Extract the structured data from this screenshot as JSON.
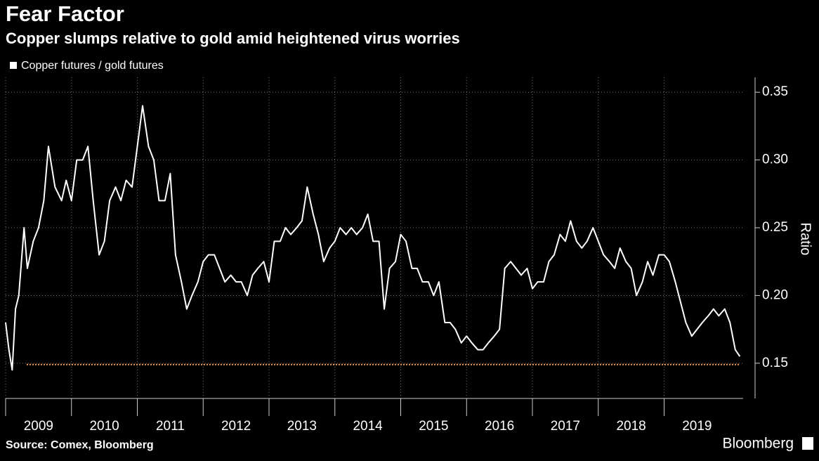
{
  "chart_data": {
    "type": "line",
    "title": "Fear Factor",
    "subtitle": "Copper slumps relative to gold amid heightened virus worries",
    "y_label": "Ratio",
    "source": "Source: Comex, Bloomberg",
    "brand": "Bloomberg",
    "xlim": [
      2009,
      2020.2
    ],
    "xticks": [
      2009,
      2010,
      2011,
      2012,
      2013,
      2014,
      2015,
      2016,
      2017,
      2018,
      2019
    ],
    "ylim": [
      0.124,
      0.361
    ],
    "yticks": [
      0.15,
      {
        "value": 0.2,
        "label": "0.20"
      },
      0.25,
      {
        "value": 0.3,
        "label": "0.30"
      },
      0.35
    ],
    "grid": true,
    "y_axis_side": "right",
    "reference_line": {
      "value": 0.149,
      "color": "#f0a060"
    },
    "x": [
      2009.0,
      2009.05,
      2009.1,
      2009.15,
      2009.2,
      2009.28,
      2009.33,
      2009.42,
      2009.5,
      2009.58,
      2009.65,
      2009.75,
      2009.85,
      2009.92,
      2010.0,
      2010.08,
      2010.17,
      2010.25,
      2010.33,
      2010.42,
      2010.5,
      2010.58,
      2010.67,
      2010.75,
      2010.83,
      2010.92,
      2011.0,
      2011.08,
      2011.17,
      2011.25,
      2011.33,
      2011.42,
      2011.5,
      2011.58,
      2011.67,
      2011.75,
      2011.83,
      2011.92,
      2012.0,
      2012.08,
      2012.17,
      2012.25,
      2012.33,
      2012.42,
      2012.5,
      2012.58,
      2012.67,
      2012.75,
      2012.83,
      2012.92,
      2013.0,
      2013.08,
      2013.17,
      2013.25,
      2013.33,
      2013.42,
      2013.5,
      2013.58,
      2013.67,
      2013.75,
      2013.83,
      2013.92,
      2014.0,
      2014.08,
      2014.17,
      2014.25,
      2014.33,
      2014.42,
      2014.5,
      2014.58,
      2014.67,
      2014.75,
      2014.83,
      2014.92,
      2015.0,
      2015.08,
      2015.17,
      2015.25,
      2015.33,
      2015.42,
      2015.5,
      2015.58,
      2015.67,
      2015.75,
      2015.83,
      2015.92,
      2016.0,
      2016.08,
      2016.17,
      2016.25,
      2016.33,
      2016.42,
      2016.5,
      2016.58,
      2016.67,
      2016.75,
      2016.83,
      2016.92,
      2017.0,
      2017.08,
      2017.17,
      2017.25,
      2017.33,
      2017.42,
      2017.5,
      2017.58,
      2017.67,
      2017.75,
      2017.83,
      2017.92,
      2018.0,
      2018.08,
      2018.17,
      2018.25,
      2018.33,
      2018.42,
      2018.5,
      2018.58,
      2018.67,
      2018.75,
      2018.83,
      2018.92,
      2019.0,
      2019.08,
      2019.17,
      2019.25,
      2019.33,
      2019.42,
      2019.5,
      2019.58,
      2019.67,
      2019.75,
      2019.83,
      2019.92,
      2020.0,
      2020.08,
      2020.15
    ],
    "series": [
      {
        "name": "Copper futures / gold futures",
        "color": "#ffffff",
        "values": [
          0.18,
          0.16,
          0.145,
          0.19,
          0.2,
          0.25,
          0.22,
          0.24,
          0.25,
          0.27,
          0.31,
          0.28,
          0.27,
          0.285,
          0.27,
          0.3,
          0.3,
          0.31,
          0.27,
          0.23,
          0.24,
          0.27,
          0.28,
          0.27,
          0.285,
          0.28,
          0.31,
          0.34,
          0.31,
          0.3,
          0.27,
          0.27,
          0.29,
          0.23,
          0.21,
          0.19,
          0.2,
          0.21,
          0.225,
          0.23,
          0.23,
          0.22,
          0.21,
          0.215,
          0.21,
          0.21,
          0.2,
          0.215,
          0.22,
          0.225,
          0.21,
          0.24,
          0.24,
          0.25,
          0.245,
          0.25,
          0.255,
          0.28,
          0.26,
          0.245,
          0.225,
          0.235,
          0.24,
          0.25,
          0.245,
          0.25,
          0.245,
          0.25,
          0.26,
          0.24,
          0.24,
          0.19,
          0.22,
          0.225,
          0.245,
          0.24,
          0.22,
          0.22,
          0.21,
          0.21,
          0.2,
          0.21,
          0.18,
          0.18,
          0.175,
          0.165,
          0.17,
          0.165,
          0.16,
          0.16,
          0.165,
          0.17,
          0.175,
          0.22,
          0.225,
          0.22,
          0.215,
          0.22,
          0.205,
          0.21,
          0.21,
          0.225,
          0.23,
          0.245,
          0.24,
          0.255,
          0.24,
          0.235,
          0.24,
          0.25,
          0.24,
          0.23,
          0.225,
          0.22,
          0.235,
          0.225,
          0.22,
          0.2,
          0.21,
          0.225,
          0.215,
          0.23,
          0.23,
          0.225,
          0.21,
          0.195,
          0.18,
          0.17,
          0.175,
          0.18,
          0.185,
          0.19,
          0.185,
          0.19,
          0.18,
          0.16,
          0.155
        ]
      }
    ]
  }
}
